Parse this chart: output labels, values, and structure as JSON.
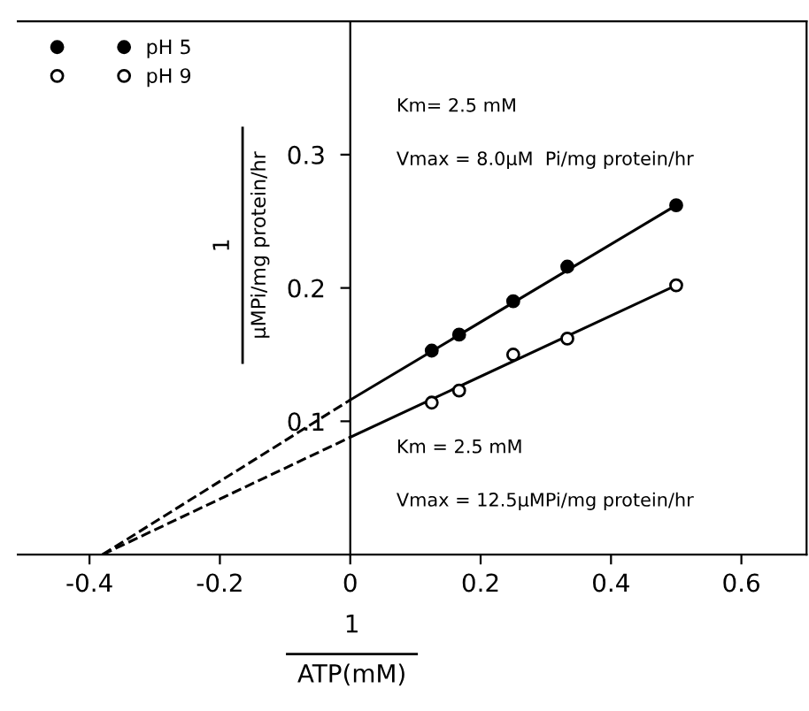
{
  "chart_data": {
    "type": "scatter",
    "xlabel": "1\nATP(mM)",
    "ylabel": "1\nµMPi/mg protein/hr",
    "xlim": [
      -0.51,
      0.7
    ],
    "ylim": [
      0,
      0.4
    ],
    "xticks": [
      -0.4,
      -0.2,
      0,
      0.2,
      0.4,
      0.6
    ],
    "yticks": [
      0.1,
      0.2,
      0.3
    ],
    "series": [
      {
        "name": "pH 5",
        "color": "#000000",
        "marker": "circle",
        "x": [
          0.125,
          0.167,
          0.25,
          0.333,
          0.5
        ],
        "values": [
          0.153,
          0.165,
          0.19,
          0.216,
          0.262
        ]
      },
      {
        "name": "pH 9",
        "color": "#ffffff",
        "marker": "circle",
        "x": [
          0.125,
          0.167,
          0.25,
          0.333,
          0.5
        ],
        "values": [
          0.114,
          0.123,
          0.15,
          0.162,
          0.202
        ]
      },
      {
        "type": "line",
        "color": "#000000",
        "line_style": "solid",
        "x": [
          0,
          0.5
        ],
        "values": [
          0.116,
          0.262
        ]
      },
      {
        "type": "line",
        "color": "#000000",
        "line_style": "solid",
        "x": [
          0,
          0.5
        ],
        "values": [
          0.088,
          0.202
        ]
      },
      {
        "type": "line",
        "color": "#000000",
        "line_style": "dashed",
        "x": [
          -0.38,
          0
        ],
        "values": [
          0,
          0.116
        ]
      },
      {
        "type": "line",
        "color": "#000000",
        "line_style": "dashed",
        "x": [
          -0.38,
          0
        ],
        "values": [
          0,
          0.088
        ]
      }
    ],
    "annotations": [
      "Km= 2.5 mM",
      "Vmax = 8.0µM  Pi/mg protein/hr",
      "Km = 2.5 mM",
      "Vmax = 12.5µMPi/mg protein/hr"
    ],
    "legend": "top left"
  }
}
